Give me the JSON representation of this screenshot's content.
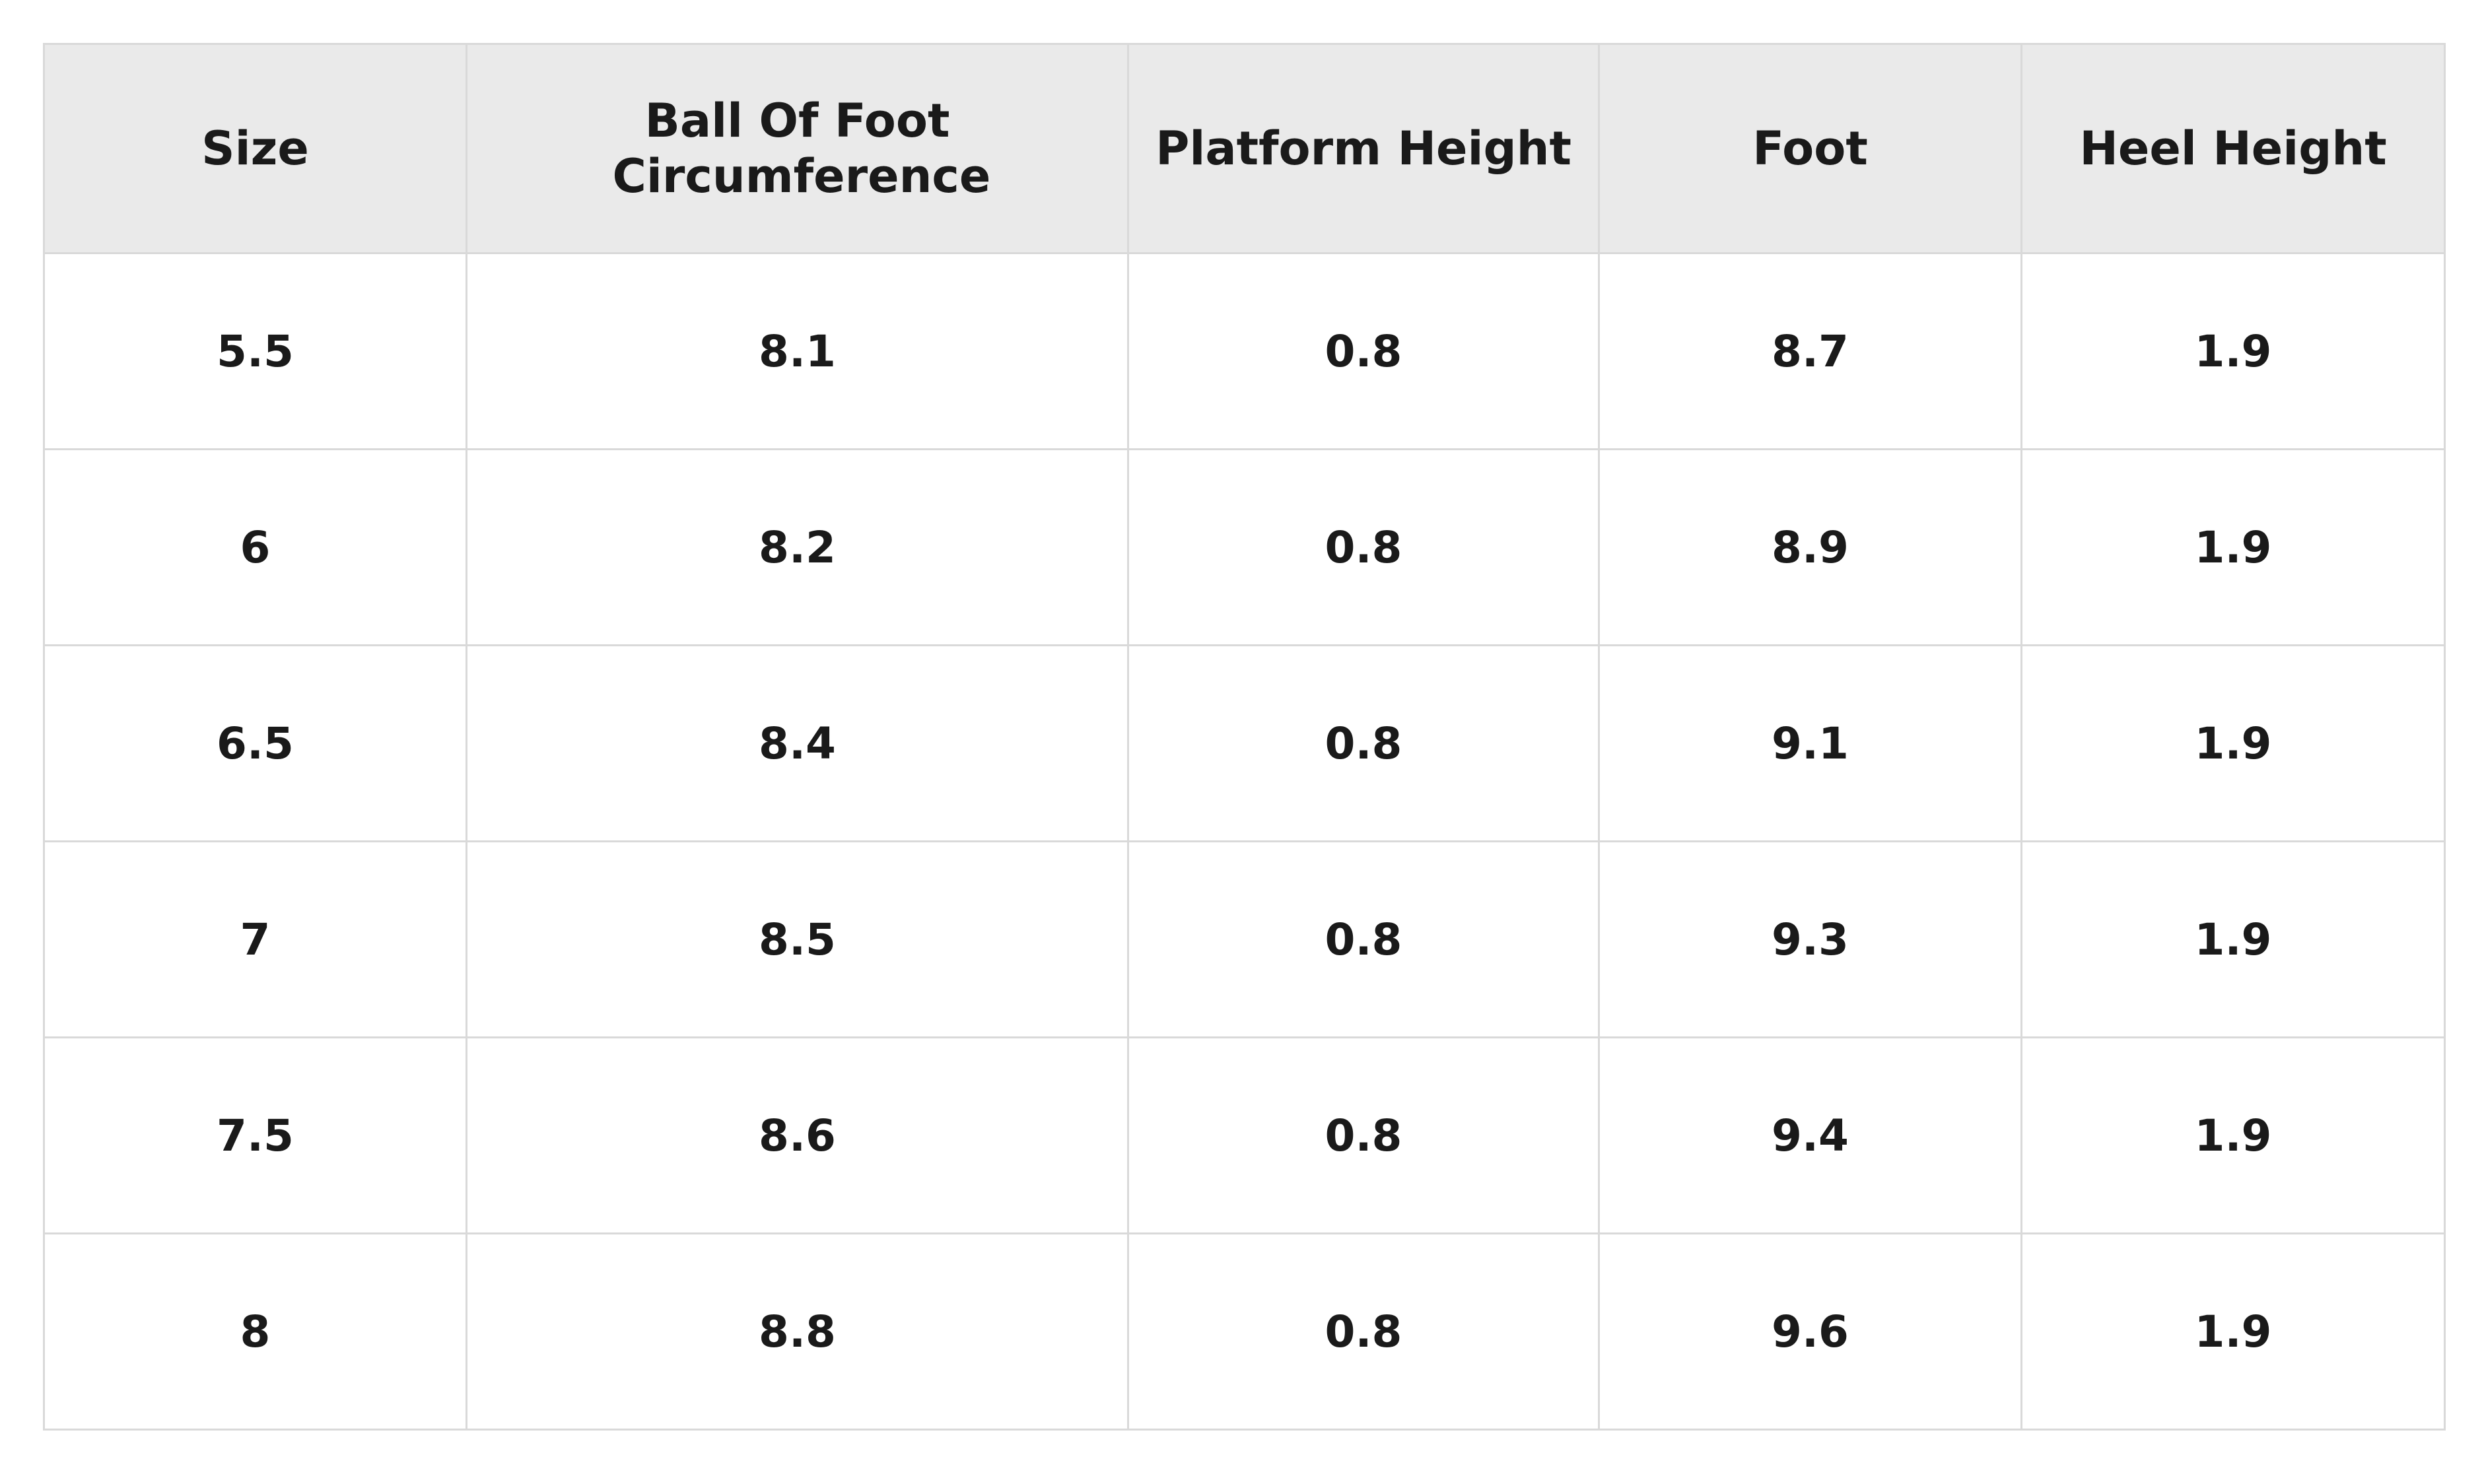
{
  "table": {
    "headers": [
      "Size",
      "Ball Of Foot Circumference",
      "Platform Height",
      "Foot",
      "Heel Height"
    ],
    "rows": [
      [
        "5.5",
        "8.1",
        "0.8",
        "8.7",
        "1.9"
      ],
      [
        "6",
        "8.2",
        "0.8",
        "8.9",
        "1.9"
      ],
      [
        "6.5",
        "8.4",
        "0.8",
        "9.1",
        "1.9"
      ],
      [
        "7",
        "8.5",
        "0.8",
        "9.3",
        "1.9"
      ],
      [
        "7.5",
        "8.6",
        "0.8",
        "9.4",
        "1.9"
      ],
      [
        "8",
        "8.8",
        "0.8",
        "9.6",
        "1.9"
      ]
    ]
  }
}
